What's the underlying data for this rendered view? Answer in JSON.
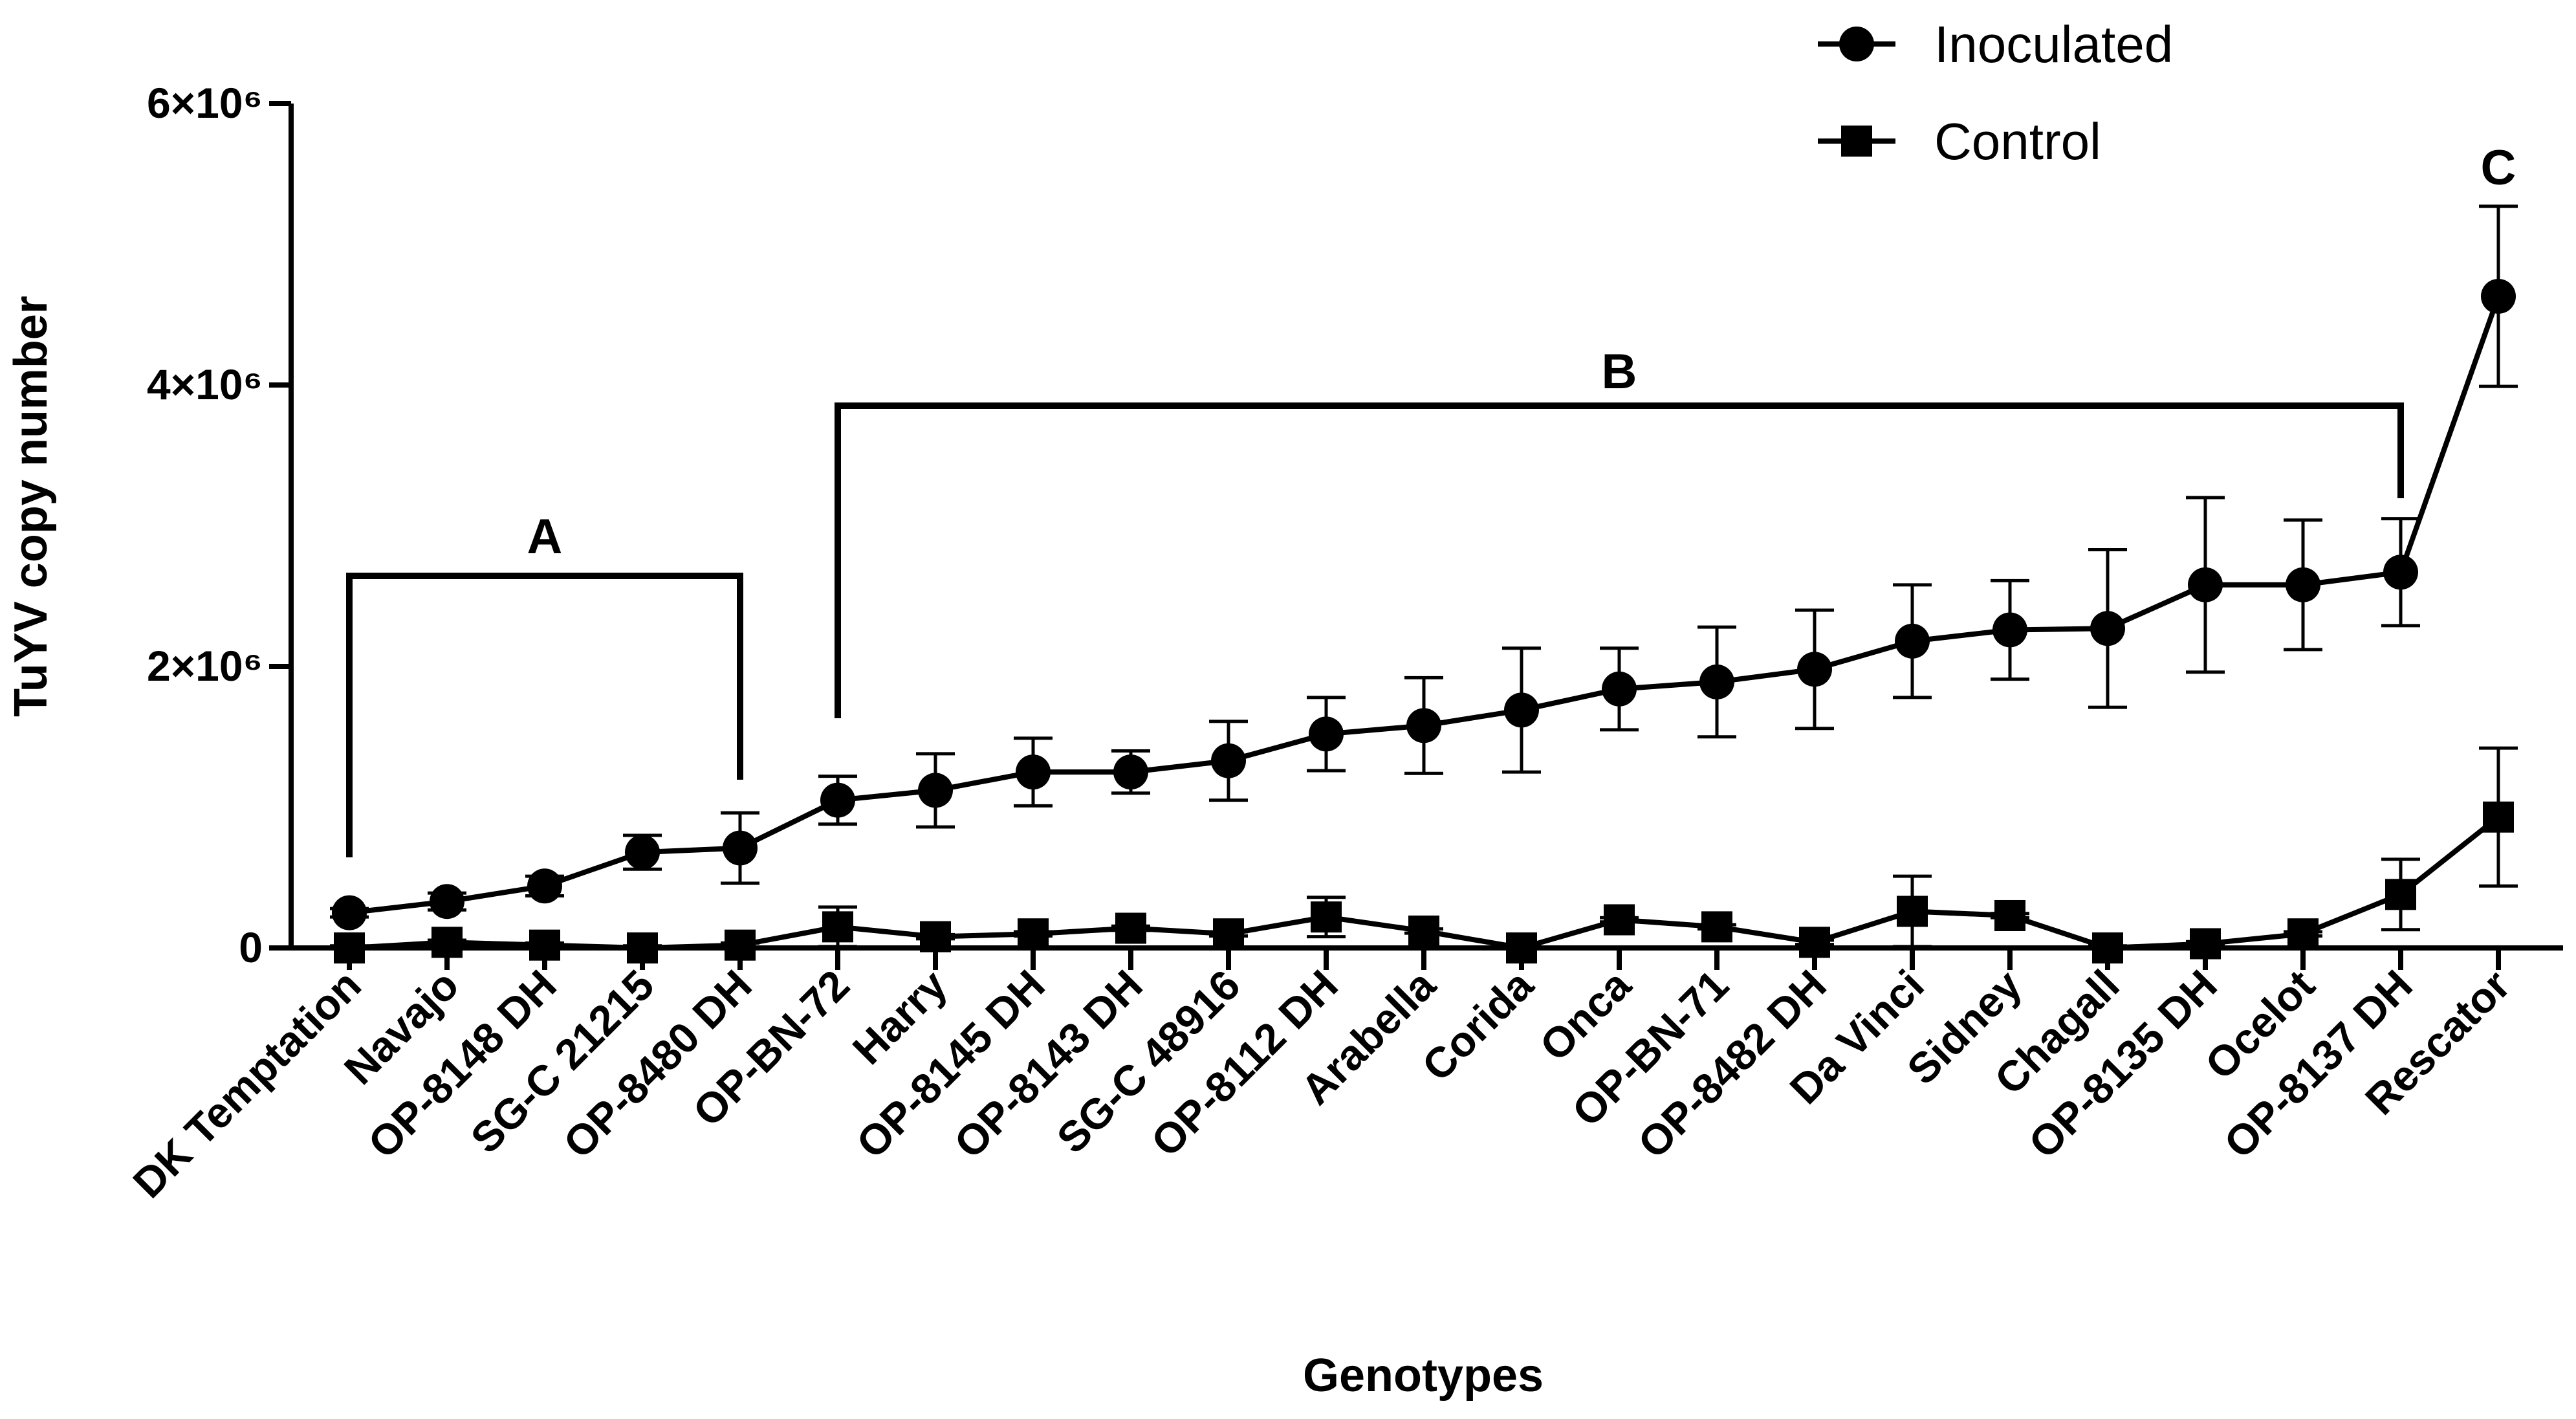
{
  "chart_data": {
    "type": "line",
    "title": "",
    "xlabel": "Genotypes",
    "ylabel": "TuYV copy number",
    "ylim": [
      0,
      6000000
    ],
    "yticks": [
      {
        "value": 0,
        "label": "0"
      },
      {
        "value": 2000000,
        "label": "2×10⁶"
      },
      {
        "value": 4000000,
        "label": "4×10⁶"
      },
      {
        "value": 6000000,
        "label": "6×10⁶"
      }
    ],
    "categories": [
      "DK Temptation",
      "Navajo",
      "OP-8148 DH",
      "SG-C 21215",
      "OP-8480 DH",
      "OP-BN-72",
      "Harry",
      "OP-8145 DH",
      "OP-8143 DH",
      "SG-C 48916",
      "OP-8112 DH",
      "Arabella",
      "Corida",
      "Onca",
      "OP-BN-71",
      "OP-8482 DH",
      "Da Vinci",
      "Sidney",
      "Chagall",
      "OP-8135 DH",
      "Ocelot",
      "OP-8137 DH",
      "Rescator"
    ],
    "series": [
      {
        "name": "Inoculated",
        "marker": "circle",
        "values": [
          250000,
          330000,
          440000,
          680000,
          710000,
          1050000,
          1120000,
          1250000,
          1250000,
          1330000,
          1520000,
          1580000,
          1690000,
          1840000,
          1890000,
          1980000,
          2180000,
          2260000,
          2270000,
          2580000,
          2580000,
          2670000,
          4630000
        ],
        "errors": [
          30000,
          60000,
          70000,
          120000,
          250000,
          170000,
          260000,
          240000,
          150000,
          280000,
          260000,
          340000,
          440000,
          290000,
          390000,
          420000,
          400000,
          350000,
          560000,
          620000,
          460000,
          380000,
          640000
        ]
      },
      {
        "name": "Control",
        "marker": "square",
        "values": [
          0,
          40000,
          20000,
          0,
          20000,
          150000,
          80000,
          100000,
          140000,
          100000,
          220000,
          120000,
          0,
          200000,
          150000,
          40000,
          260000,
          230000,
          0,
          30000,
          100000,
          380000,
          930000
        ],
        "errors": [
          15000,
          15000,
          15000,
          15000,
          15000,
          140000,
          15000,
          15000,
          15000,
          15000,
          140000,
          15000,
          15000,
          15000,
          15000,
          15000,
          250000,
          15000,
          15000,
          15000,
          15000,
          250000,
          490000
        ]
      }
    ],
    "legend": {
      "position": "top-right"
    },
    "annotations": [
      {
        "label": "A",
        "from_category": 0,
        "to_category": 4
      },
      {
        "label": "B",
        "from_category": 5,
        "to_category": 21
      },
      {
        "label": "C",
        "category": 22
      }
    ]
  }
}
